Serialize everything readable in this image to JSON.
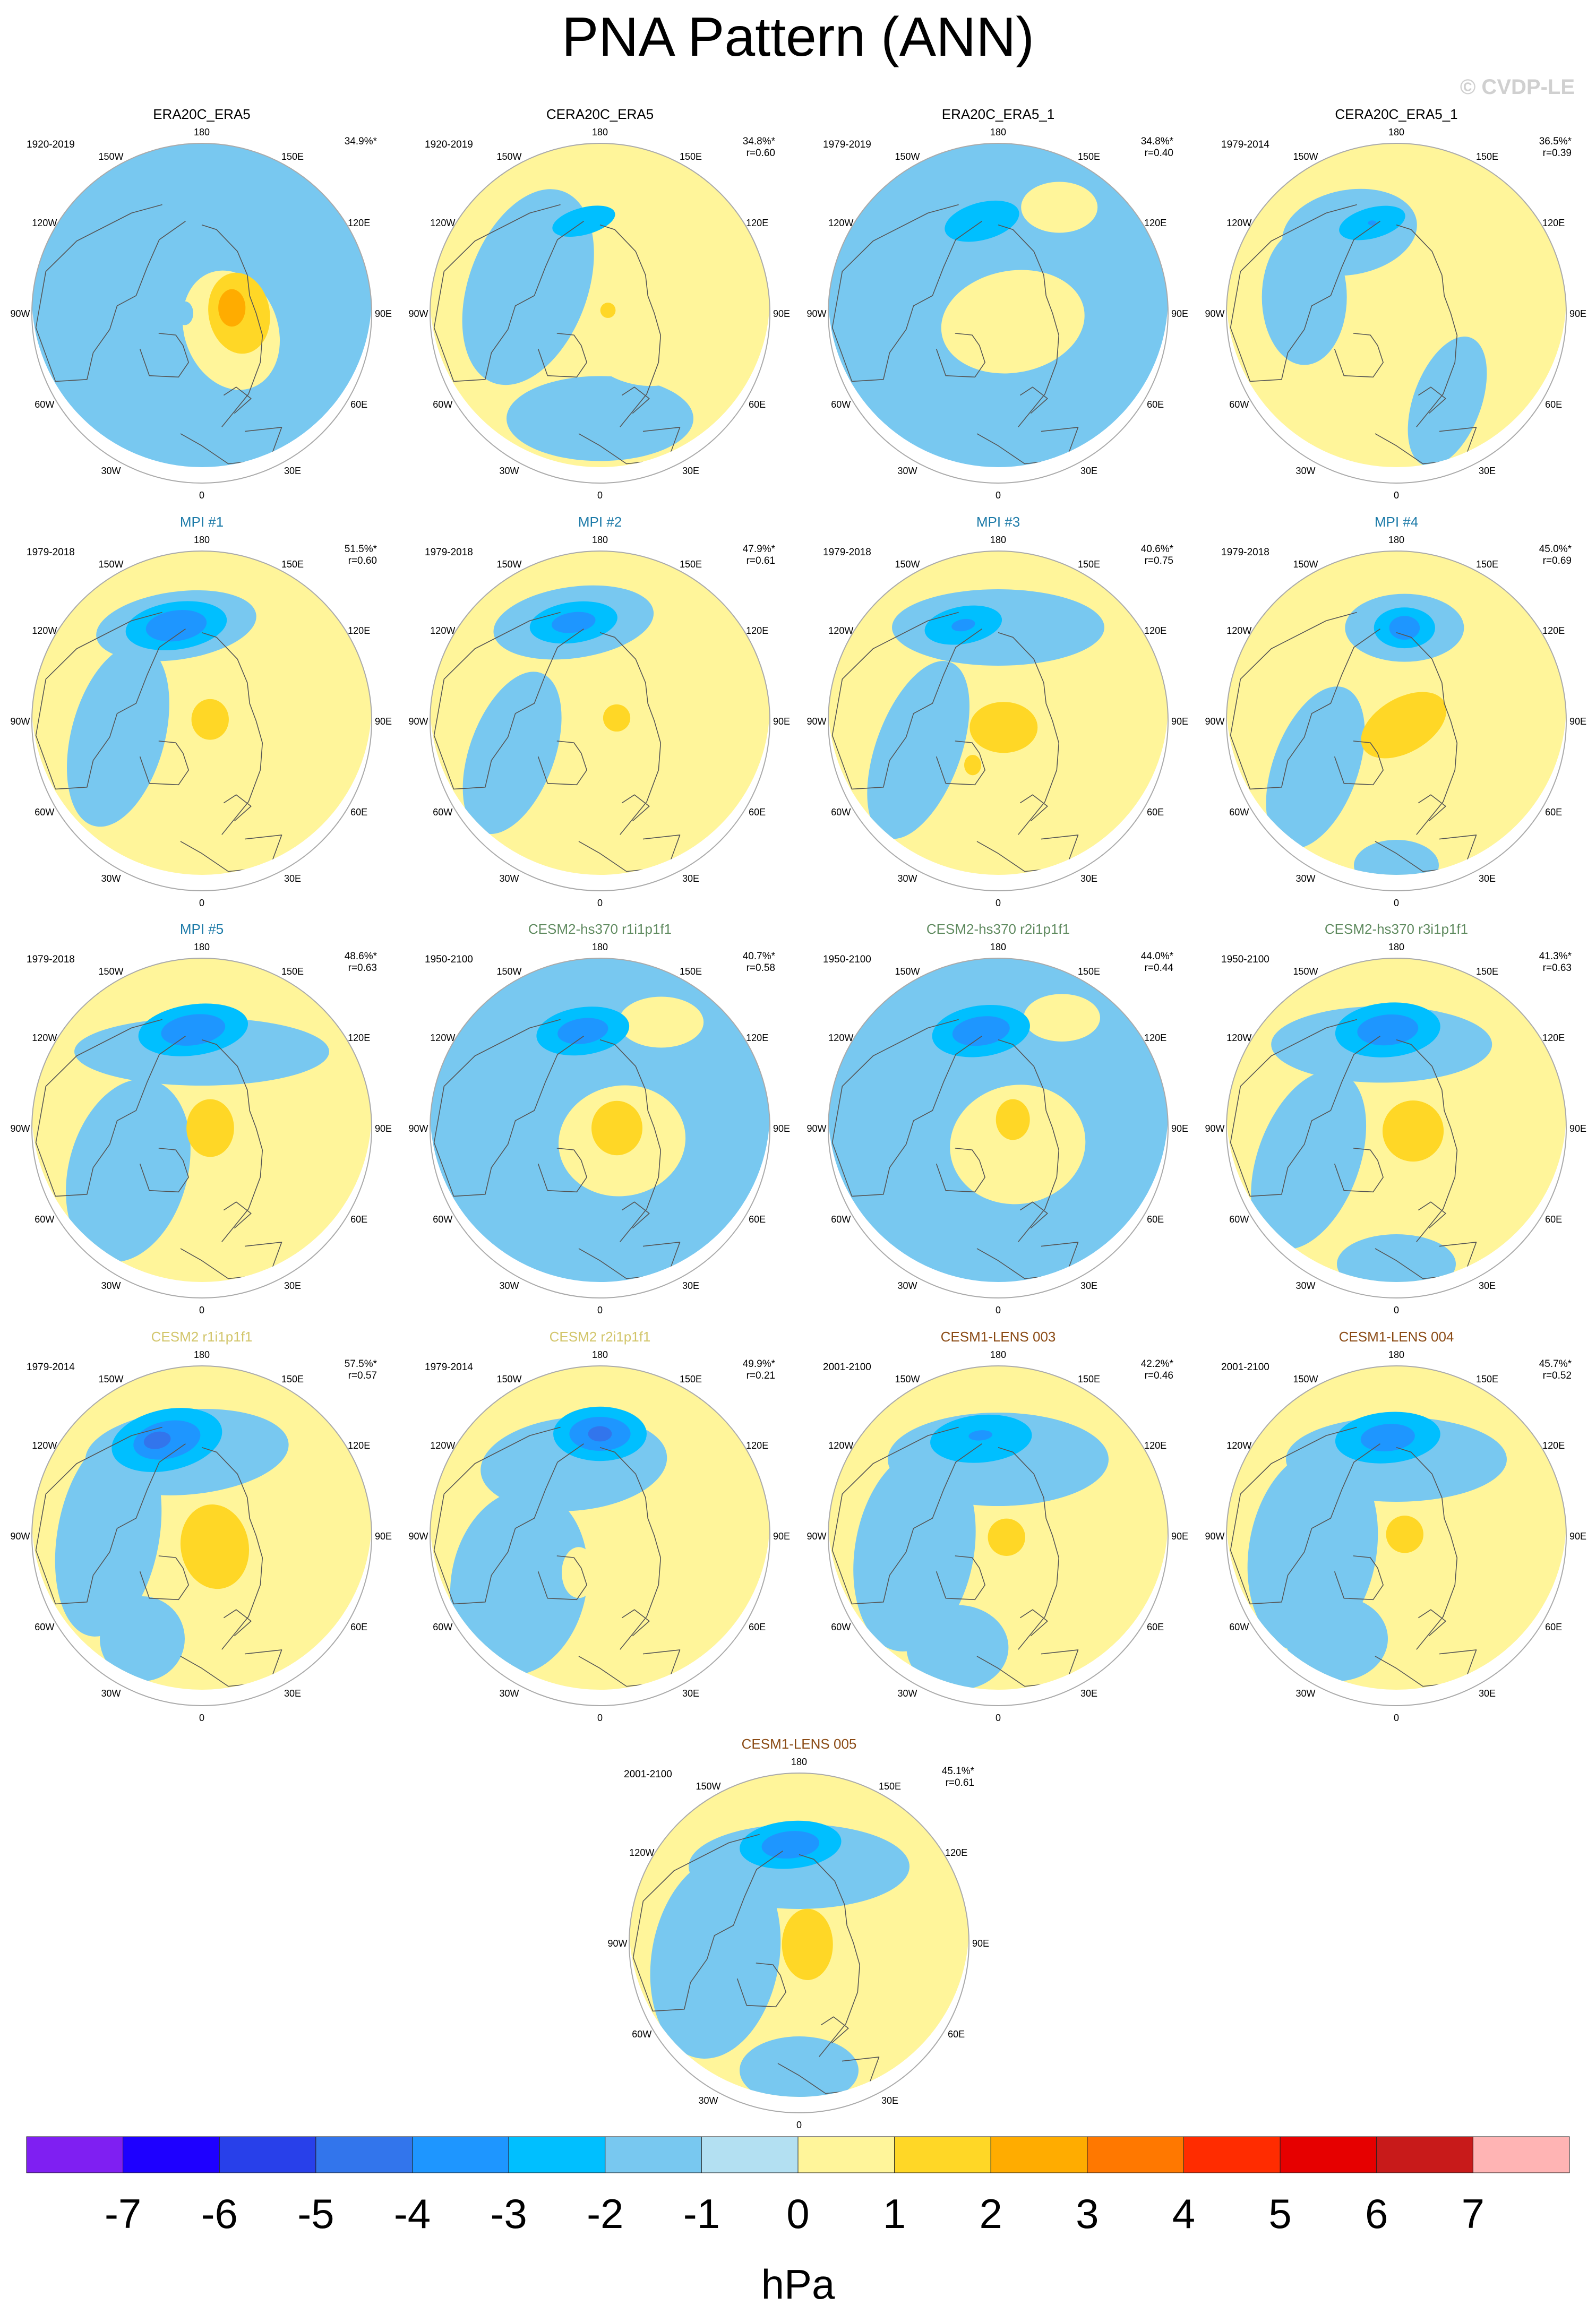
{
  "title": "PNA Pattern (ANN)",
  "copyright": "© CVDP-LE",
  "colors": {
    "title_obs": "#000000",
    "title_mpi": "#1c7aa8",
    "title_cesm2_hs": "#5f8a5f",
    "title_cesm2": "#d2c56a",
    "title_lens": "#8a4a14",
    "ocean_edge": "#aaaaaa",
    "coast": "#555555"
  },
  "lon_labels": [
    "180",
    "150E",
    "120E",
    "90E",
    "60E",
    "30E",
    "0",
    "30W",
    "60W",
    "90W",
    "120W",
    "150W"
  ],
  "panels": [
    {
      "title": "ERA20C_ERA5",
      "title_color": "title_obs",
      "period": "1920-2019",
      "pct": "34.9%*",
      "r": "",
      "bg": "neg",
      "features": [
        {
          "lev": 1,
          "lon": 60,
          "dist": 0.2,
          "w": 0.55,
          "h": 0.72,
          "rot": -20
        },
        {
          "lev": 2,
          "lon": 90,
          "dist": 0.22,
          "w": 0.36,
          "h": 0.48,
          "rot": -10
        },
        {
          "lev": 3,
          "lon": 100,
          "dist": 0.18,
          "w": 0.16,
          "h": 0.22,
          "rot": 0
        },
        {
          "lev": -1,
          "lon": 270,
          "dist": 0.1,
          "w": 0.1,
          "h": 0.14,
          "rot": 0
        }
      ]
    },
    {
      "title": "CERA20C_ERA5",
      "title_color": "title_obs",
      "period": "1920-2019",
      "pct": "34.8%*",
      "r": "r=0.60",
      "bg": "pos",
      "features": [
        {
          "lev": -1,
          "lon": 0,
          "dist": 0.62,
          "w": 1.1,
          "h": 0.5,
          "rot": 0
        },
        {
          "lev": -1,
          "lon": 250,
          "dist": 0.45,
          "w": 0.7,
          "h": 1.2,
          "rot": 20
        },
        {
          "lev": -2,
          "lon": 190,
          "dist": 0.55,
          "w": 0.38,
          "h": 0.16,
          "rot": -15
        },
        {
          "lev": 1,
          "lon": 60,
          "dist": 0.3,
          "w": 0.75,
          "h": 0.55,
          "rot": 10
        },
        {
          "lev": 2,
          "lon": 110,
          "dist": 0.05,
          "w": 0.09,
          "h": 0.09,
          "rot": 0
        }
      ]
    },
    {
      "title": "ERA20C_ERA5_1",
      "title_color": "title_obs",
      "period": "1979-2019",
      "pct": "34.8%*",
      "r": "r=0.40",
      "bg": "neg",
      "features": [
        {
          "lev": 1,
          "lon": 60,
          "dist": 0.1,
          "w": 0.85,
          "h": 0.6,
          "rot": -10
        },
        {
          "lev": 1,
          "lon": 150,
          "dist": 0.72,
          "w": 0.45,
          "h": 0.3,
          "rot": 0
        },
        {
          "lev": -2,
          "lon": 190,
          "dist": 0.55,
          "w": 0.45,
          "h": 0.22,
          "rot": -15
        }
      ]
    },
    {
      "title": "CERA20C_ERA5_1",
      "title_color": "title_obs",
      "period": "1979-2014",
      "pct": "36.5%*",
      "r": "r=0.39",
      "bg": "pos",
      "features": [
        {
          "lev": -1,
          "lon": 210,
          "dist": 0.55,
          "w": 0.8,
          "h": 0.5,
          "rot": -10
        },
        {
          "lev": -1,
          "lon": 260,
          "dist": 0.55,
          "w": 0.5,
          "h": 0.8,
          "rot": 0
        },
        {
          "lev": -1,
          "lon": 30,
          "dist": 0.6,
          "w": 0.4,
          "h": 0.8,
          "rot": 20
        },
        {
          "lev": -2,
          "lon": 195,
          "dist": 0.55,
          "w": 0.4,
          "h": 0.18,
          "rot": -15
        },
        {
          "lev": -3,
          "lon": 195,
          "dist": 0.55,
          "w": 0.05,
          "h": 0.03,
          "rot": 0
        }
      ]
    },
    {
      "title": "MPI #1",
      "title_color": "title_mpi",
      "period": "1979-2018",
      "pct": "51.5%*",
      "r": "r=0.60",
      "bg": "pos",
      "features": [
        {
          "lev": -1,
          "lon": 195,
          "dist": 0.58,
          "w": 0.95,
          "h": 0.4,
          "rot": -8
        },
        {
          "lev": -1,
          "lon": 280,
          "dist": 0.5,
          "w": 0.55,
          "h": 1.1,
          "rot": 15
        },
        {
          "lev": -2,
          "lon": 195,
          "dist": 0.58,
          "w": 0.6,
          "h": 0.28,
          "rot": -8
        },
        {
          "lev": -3,
          "lon": 195,
          "dist": 0.58,
          "w": 0.36,
          "h": 0.18,
          "rot": -8
        },
        {
          "lev": 2,
          "lon": 100,
          "dist": 0.05,
          "w": 0.22,
          "h": 0.24,
          "rot": 0
        }
      ]
    },
    {
      "title": "MPI #2",
      "title_color": "title_mpi",
      "period": "1979-2018",
      "pct": "47.9%*",
      "r": "r=0.61",
      "bg": "pos",
      "features": [
        {
          "lev": -1,
          "lon": 195,
          "dist": 0.6,
          "w": 0.95,
          "h": 0.42,
          "rot": -8
        },
        {
          "lev": -1,
          "lon": 290,
          "dist": 0.55,
          "w": 0.5,
          "h": 1.0,
          "rot": 20
        },
        {
          "lev": -2,
          "lon": 195,
          "dist": 0.6,
          "w": 0.52,
          "h": 0.24,
          "rot": -8
        },
        {
          "lev": -3,
          "lon": 195,
          "dist": 0.6,
          "w": 0.26,
          "h": 0.12,
          "rot": -8
        },
        {
          "lev": 2,
          "lon": 100,
          "dist": 0.1,
          "w": 0.16,
          "h": 0.16,
          "rot": 0
        }
      ]
    },
    {
      "title": "MPI #3",
      "title_color": "title_mpi",
      "period": "1979-2018",
      "pct": "40.6%*",
      "r": "r=0.75",
      "bg": "pos",
      "features": [
        {
          "lev": -1,
          "lon": 180,
          "dist": 0.55,
          "w": 1.25,
          "h": 0.45,
          "rot": 0
        },
        {
          "lev": -1,
          "lon": 290,
          "dist": 0.5,
          "w": 0.5,
          "h": 1.1,
          "rot": 20
        },
        {
          "lev": -2,
          "lon": 200,
          "dist": 0.6,
          "w": 0.46,
          "h": 0.22,
          "rot": -10
        },
        {
          "lev": -3,
          "lon": 200,
          "dist": 0.6,
          "w": 0.14,
          "h": 0.07,
          "rot": -10
        },
        {
          "lev": 2,
          "lon": 40,
          "dist": 0.05,
          "w": 0.4,
          "h": 0.3,
          "rot": 0
        },
        {
          "lev": 2,
          "lon": 330,
          "dist": 0.3,
          "w": 0.1,
          "h": 0.12,
          "rot": 0
        }
      ]
    },
    {
      "title": "MPI #4",
      "title_color": "title_mpi",
      "period": "1979-2018",
      "pct": "45.0%*",
      "r": "r=0.69",
      "bg": "pos",
      "features": [
        {
          "lev": -1,
          "lon": 175,
          "dist": 0.55,
          "w": 0.7,
          "h": 0.4,
          "rot": 0
        },
        {
          "lev": -1,
          "lon": 300,
          "dist": 0.55,
          "w": 0.5,
          "h": 1.0,
          "rot": 20
        },
        {
          "lev": -1,
          "lon": 0,
          "dist": 0.85,
          "w": 0.5,
          "h": 0.3,
          "rot": 0
        },
        {
          "lev": -2,
          "lon": 175,
          "dist": 0.55,
          "w": 0.36,
          "h": 0.24,
          "rot": 0
        },
        {
          "lev": -3,
          "lon": 175,
          "dist": 0.55,
          "w": 0.18,
          "h": 0.14,
          "rot": 0
        },
        {
          "lev": 2,
          "lon": 60,
          "dist": 0.05,
          "w": 0.55,
          "h": 0.32,
          "rot": -30
        }
      ]
    },
    {
      "title": "MPI #5",
      "title_color": "title_mpi",
      "period": "1979-2018",
      "pct": "48.6%*",
      "r": "r=0.63",
      "bg": "pos",
      "features": [
        {
          "lev": -1,
          "lon": 180,
          "dist": 0.45,
          "w": 1.5,
          "h": 0.4,
          "rot": 0
        },
        {
          "lev": -1,
          "lon": 300,
          "dist": 0.5,
          "w": 0.7,
          "h": 1.1,
          "rot": 15
        },
        {
          "lev": -2,
          "lon": 185,
          "dist": 0.58,
          "w": 0.65,
          "h": 0.3,
          "rot": -8
        },
        {
          "lev": -3,
          "lon": 185,
          "dist": 0.58,
          "w": 0.38,
          "h": 0.18,
          "rot": -8
        },
        {
          "lev": 2,
          "lon": 90,
          "dist": 0.05,
          "w": 0.28,
          "h": 0.34,
          "rot": 0
        }
      ]
    },
    {
      "title": "CESM2-hs370 r1i1p1f1",
      "title_color": "title_cesm2_hs",
      "period": "1950-2100",
      "pct": "40.7%*",
      "r": "r=0.58",
      "bg": "neg",
      "features": [
        {
          "lev": 1,
          "lon": 60,
          "dist": 0.15,
          "w": 0.75,
          "h": 0.65,
          "rot": -10
        },
        {
          "lev": 1,
          "lon": 150,
          "dist": 0.72,
          "w": 0.5,
          "h": 0.3,
          "rot": 0
        },
        {
          "lev": -2,
          "lon": 190,
          "dist": 0.58,
          "w": 0.55,
          "h": 0.28,
          "rot": -8
        },
        {
          "lev": -3,
          "lon": 190,
          "dist": 0.58,
          "w": 0.3,
          "h": 0.15,
          "rot": -8
        },
        {
          "lev": 2,
          "lon": 90,
          "dist": 0.1,
          "w": 0.3,
          "h": 0.32,
          "rot": 0
        }
      ]
    },
    {
      "title": "CESM2-hs370 r2i1p1f1",
      "title_color": "title_cesm2_hs",
      "period": "1950-2100",
      "pct": "44.0%*",
      "r": "r=0.44",
      "bg": "neg",
      "features": [
        {
          "lev": 1,
          "lon": 50,
          "dist": 0.15,
          "w": 0.8,
          "h": 0.7,
          "rot": -10
        },
        {
          "lev": 1,
          "lon": 150,
          "dist": 0.75,
          "w": 0.45,
          "h": 0.28,
          "rot": 0
        },
        {
          "lev": -2,
          "lon": 190,
          "dist": 0.58,
          "w": 0.58,
          "h": 0.3,
          "rot": -8
        },
        {
          "lev": -3,
          "lon": 190,
          "dist": 0.58,
          "w": 0.34,
          "h": 0.17,
          "rot": -8
        },
        {
          "lev": 2,
          "lon": 120,
          "dist": 0.1,
          "w": 0.2,
          "h": 0.24,
          "rot": 0
        }
      ]
    },
    {
      "title": "CESM2-hs370 r3i1p1f1",
      "title_color": "title_cesm2_hs",
      "period": "1950-2100",
      "pct": "41.3%*",
      "r": "r=0.63",
      "bg": "pos",
      "features": [
        {
          "lev": -1,
          "lon": 190,
          "dist": 0.5,
          "w": 1.3,
          "h": 0.45,
          "rot": 0
        },
        {
          "lev": -1,
          "lon": 290,
          "dist": 0.55,
          "w": 0.6,
          "h": 1.1,
          "rot": 20
        },
        {
          "lev": -1,
          "lon": 0,
          "dist": 0.8,
          "w": 0.7,
          "h": 0.35,
          "rot": 0
        },
        {
          "lev": -2,
          "lon": 185,
          "dist": 0.58,
          "w": 0.62,
          "h": 0.32,
          "rot": -5
        },
        {
          "lev": -3,
          "lon": 185,
          "dist": 0.58,
          "w": 0.36,
          "h": 0.18,
          "rot": -5
        },
        {
          "lev": 2,
          "lon": 80,
          "dist": 0.1,
          "w": 0.36,
          "h": 0.36,
          "rot": 0
        }
      ]
    },
    {
      "title": "CESM2 r1i1p1f1",
      "title_color": "title_cesm2",
      "period": "1979-2014",
      "pct": "57.5%*",
      "r": "r=0.57",
      "bg": "pos",
      "features": [
        {
          "lev": -1,
          "lon": 190,
          "dist": 0.5,
          "w": 1.2,
          "h": 0.5,
          "rot": -5
        },
        {
          "lev": -1,
          "lon": 270,
          "dist": 0.55,
          "w": 0.6,
          "h": 1.2,
          "rot": 10
        },
        {
          "lev": -1,
          "lon": 330,
          "dist": 0.7,
          "w": 0.5,
          "h": 0.5,
          "rot": 0
        },
        {
          "lev": -2,
          "lon": 200,
          "dist": 0.6,
          "w": 0.66,
          "h": 0.36,
          "rot": -12
        },
        {
          "lev": -3,
          "lon": 200,
          "dist": 0.6,
          "w": 0.4,
          "h": 0.22,
          "rot": -12
        },
        {
          "lev": -4,
          "lon": 205,
          "dist": 0.62,
          "w": 0.16,
          "h": 0.1,
          "rot": -12
        },
        {
          "lev": 2,
          "lon": 50,
          "dist": 0.1,
          "w": 0.4,
          "h": 0.5,
          "rot": -10
        }
      ]
    },
    {
      "title": "CESM2 r2i1p1f1",
      "title_color": "title_cesm2",
      "period": "1979-2014",
      "pct": "49.9%*",
      "r": "r=0.21",
      "bg": "pos",
      "features": [
        {
          "lev": -1,
          "lon": 200,
          "dist": 0.45,
          "w": 1.1,
          "h": 0.55,
          "rot": -5
        },
        {
          "lev": -1,
          "lon": 300,
          "dist": 0.55,
          "w": 0.8,
          "h": 1.1,
          "rot": 10
        },
        {
          "lev": -2,
          "lon": 180,
          "dist": 0.6,
          "w": 0.55,
          "h": 0.32,
          "rot": 0
        },
        {
          "lev": -3,
          "lon": 180,
          "dist": 0.6,
          "w": 0.36,
          "h": 0.2,
          "rot": 0
        },
        {
          "lev": -4,
          "lon": 180,
          "dist": 0.6,
          "w": 0.14,
          "h": 0.09,
          "rot": 0
        },
        {
          "lev": 1,
          "lon": 330,
          "dist": 0.25,
          "w": 0.2,
          "h": 0.3,
          "rot": 0
        }
      ]
    },
    {
      "title": "CESM1-LENS 003",
      "title_color": "title_lens",
      "period": "2001-2100",
      "pct": "42.2%*",
      "r": "r=0.46",
      "bg": "pos",
      "features": [
        {
          "lev": -1,
          "lon": 180,
          "dist": 0.45,
          "w": 1.3,
          "h": 0.55,
          "rot": 0
        },
        {
          "lev": -1,
          "lon": 280,
          "dist": 0.5,
          "w": 0.7,
          "h": 1.2,
          "rot": 10
        },
        {
          "lev": -1,
          "lon": 340,
          "dist": 0.7,
          "w": 0.6,
          "h": 0.5,
          "rot": 0
        },
        {
          "lev": -2,
          "lon": 190,
          "dist": 0.58,
          "w": 0.6,
          "h": 0.28,
          "rot": -5
        },
        {
          "lev": -3,
          "lon": 190,
          "dist": 0.6,
          "w": 0.14,
          "h": 0.06,
          "rot": -5
        },
        {
          "lev": 2,
          "lon": 80,
          "dist": 0.05,
          "w": 0.22,
          "h": 0.22,
          "rot": 0
        }
      ]
    },
    {
      "title": "CESM1-LENS 004",
      "title_color": "title_lens",
      "period": "2001-2100",
      "pct": "45.7%*",
      "r": "r=0.52",
      "bg": "pos",
      "features": [
        {
          "lev": -1,
          "lon": 180,
          "dist": 0.45,
          "w": 1.3,
          "h": 0.5,
          "rot": 0
        },
        {
          "lev": -1,
          "lon": 280,
          "dist": 0.5,
          "w": 0.75,
          "h": 1.2,
          "rot": 10
        },
        {
          "lev": -1,
          "lon": 330,
          "dist": 0.7,
          "w": 0.6,
          "h": 0.5,
          "rot": 0
        },
        {
          "lev": -2,
          "lon": 185,
          "dist": 0.58,
          "w": 0.62,
          "h": 0.3,
          "rot": -5
        },
        {
          "lev": -3,
          "lon": 185,
          "dist": 0.58,
          "w": 0.32,
          "h": 0.16,
          "rot": -5
        },
        {
          "lev": 2,
          "lon": 100,
          "dist": 0.05,
          "w": 0.22,
          "h": 0.22,
          "rot": 0
        }
      ]
    },
    {
      "title": "CESM1-LENS 005",
      "title_color": "title_lens",
      "period": "2001-2100",
      "pct": "45.1%*",
      "r": "r=0.61",
      "bg": "pos",
      "features": [
        {
          "lev": -1,
          "lon": 180,
          "dist": 0.45,
          "w": 1.3,
          "h": 0.5,
          "rot": 0
        },
        {
          "lev": -1,
          "lon": 280,
          "dist": 0.5,
          "w": 0.75,
          "h": 1.2,
          "rot": 10
        },
        {
          "lev": -1,
          "lon": 0,
          "dist": 0.75,
          "w": 0.7,
          "h": 0.4,
          "rot": 0
        },
        {
          "lev": -2,
          "lon": 185,
          "dist": 0.58,
          "w": 0.6,
          "h": 0.28,
          "rot": -5
        },
        {
          "lev": -3,
          "lon": 185,
          "dist": 0.58,
          "w": 0.34,
          "h": 0.16,
          "rot": -5
        },
        {
          "lev": 2,
          "lon": 80,
          "dist": 0.05,
          "w": 0.3,
          "h": 0.42,
          "rot": 0
        }
      ]
    }
  ],
  "colorbar": {
    "unit": "hPa",
    "ticks": [
      "-7",
      "-6",
      "-5",
      "-4",
      "-3",
      "-2",
      "-1",
      "0",
      "1",
      "2",
      "3",
      "4",
      "5",
      "6",
      "7"
    ],
    "colors": [
      "#7f1ff2",
      "#1e00ff",
      "#2840ea",
      "#3275ec",
      "#1e96ff",
      "#00bfff",
      "#78c8f0",
      "#b3e0f2",
      "#fff59a",
      "#ffd726",
      "#ffac00",
      "#ff7800",
      "#ff2c00",
      "#e60000",
      "#c81a1a",
      "#ffb4b4"
    ]
  }
}
